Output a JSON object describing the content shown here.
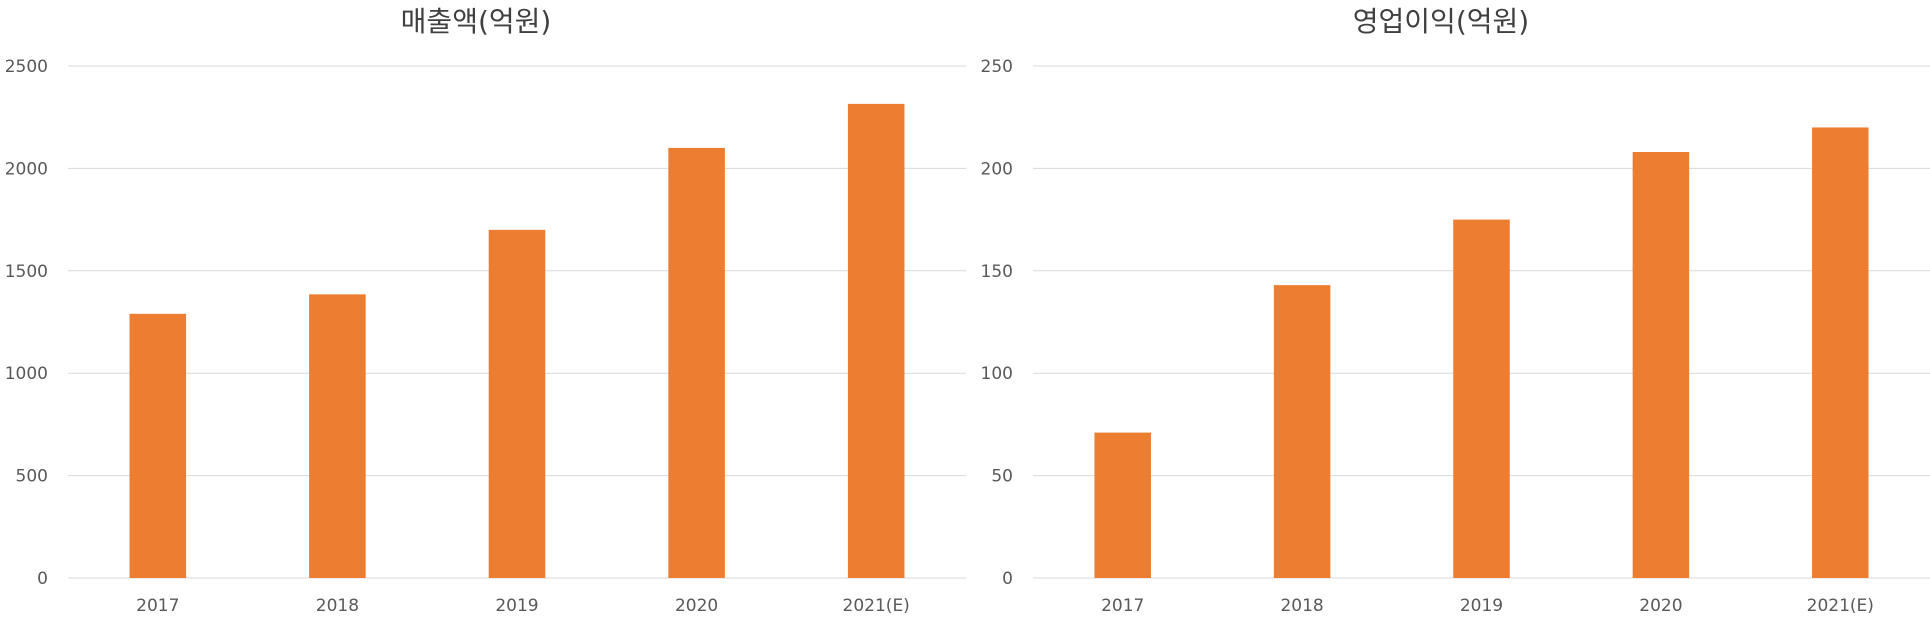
{
  "theme": {
    "bar_color": "#ED7D31",
    "grid_color": "#D9D9D9",
    "text_color": "#595959",
    "title_color": "#404040"
  },
  "chart_data": [
    {
      "type": "bar",
      "title": "매출액(억원)",
      "categories": [
        "2017",
        "2018",
        "2019",
        "2020",
        "2021(E)"
      ],
      "values": [
        1290,
        1385,
        1700,
        2100,
        2315
      ],
      "ylim": [
        0,
        2500
      ],
      "yticks": [
        0,
        500,
        1000,
        1500,
        2000,
        2500
      ],
      "grid": true,
      "legend": "none"
    },
    {
      "type": "bar",
      "title": "영업이익(억원)",
      "categories": [
        "2017",
        "2018",
        "2019",
        "2020",
        "2021(E)"
      ],
      "values": [
        71,
        143,
        175,
        208,
        220
      ],
      "ylim": [
        0,
        250
      ],
      "yticks": [
        0,
        50,
        100,
        150,
        200,
        250
      ],
      "grid": true,
      "legend": "none"
    }
  ]
}
